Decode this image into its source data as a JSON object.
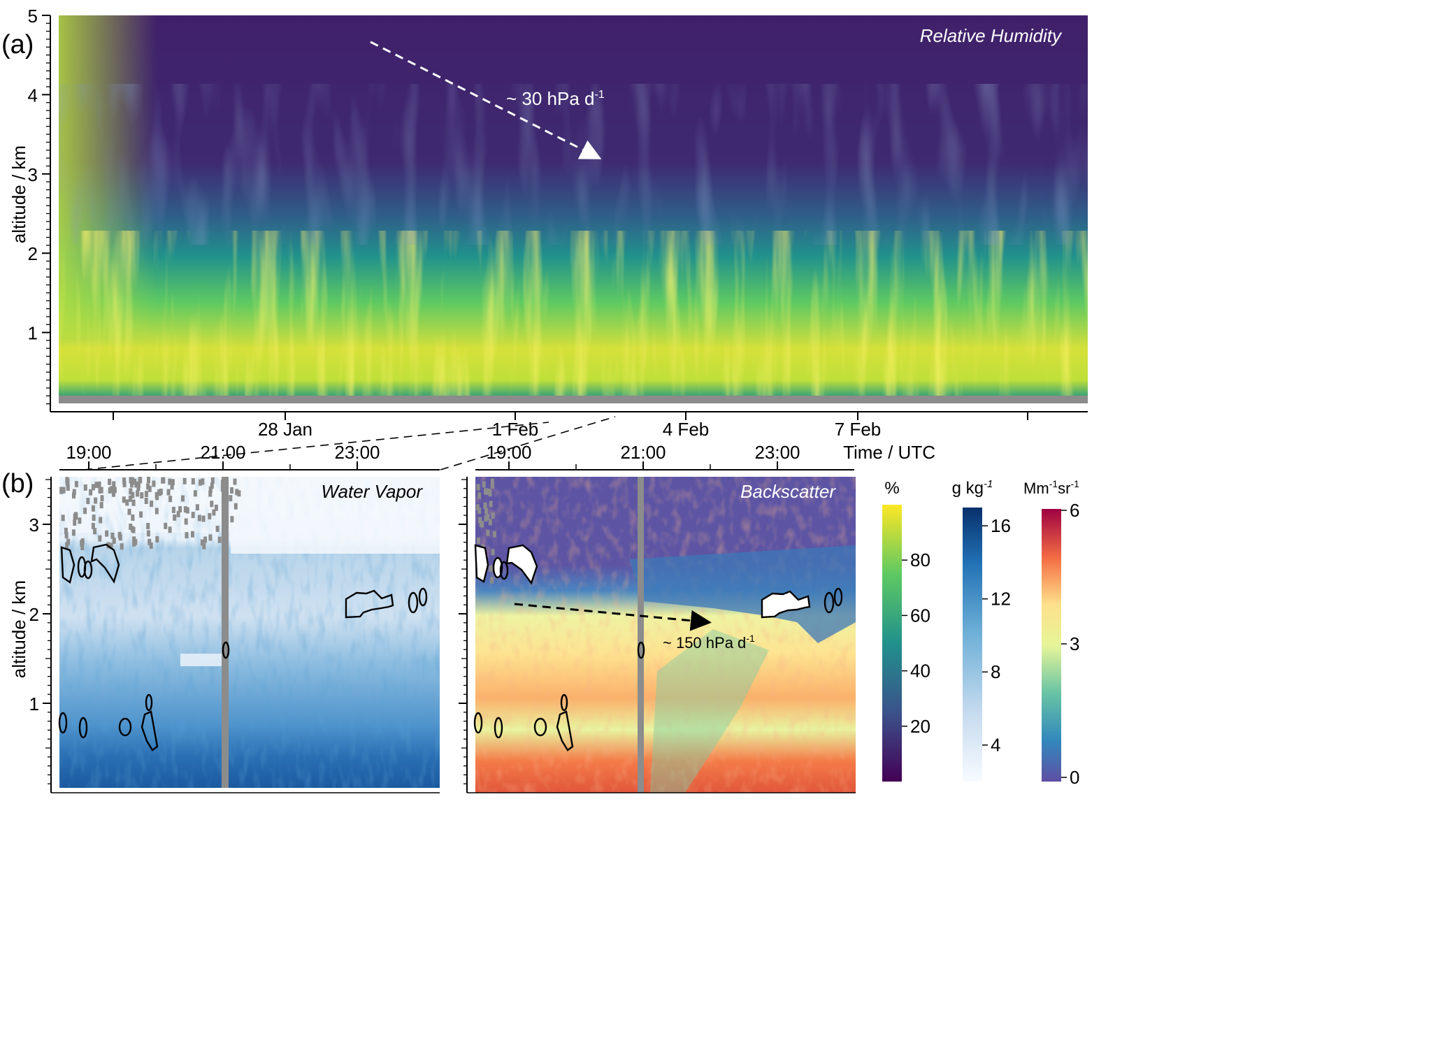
{
  "chart_data": [
    {
      "type": "heatmap",
      "panel_label": "(a)",
      "annotation_title": "Relative Humidity",
      "ylabel": "altitude / km",
      "xlabel": "Time / UTC",
      "ylim": [
        0,
        5
      ],
      "y_ticks": [
        "1",
        "2",
        "3",
        "4",
        "5"
      ],
      "x_ticks": [
        "28 Jan",
        "1 Feb",
        "4 Feb",
        "7 Feb"
      ],
      "rate_annotation": {
        "prefix": "~ 30 hPa d",
        "sup": "-1"
      },
      "colorbar": {
        "unit": "%",
        "ticks": [
          "20",
          "40",
          "60",
          "80"
        ],
        "range": [
          0,
          100
        ]
      }
    },
    {
      "type": "heatmap",
      "panel_label": "(b)",
      "annotation_title": "Water Vapor",
      "ylabel": "altitude / km",
      "ylim": [
        0,
        3.5
      ],
      "y_ticks": [
        "1",
        "2",
        "3"
      ],
      "x_ticks": [
        "19:00",
        "21:00",
        "23:00"
      ],
      "colorbar": {
        "unit": "g kg",
        "unit_sup": "-1",
        "ticks": [
          "4",
          "8",
          "12",
          "16"
        ],
        "range": [
          2,
          17
        ]
      }
    },
    {
      "type": "heatmap",
      "annotation_title": "Backscatter",
      "ylim": [
        0,
        3.5
      ],
      "x_ticks": [
        "19:00",
        "21:00",
        "23:00"
      ],
      "rate_annotation": {
        "prefix": "~ 150 hPa d",
        "sup": "-1"
      },
      "colorbar": {
        "unit": "Mm-1sr-1",
        "ticks": [
          "0",
          "3",
          "6"
        ],
        "range": [
          0,
          6
        ]
      }
    }
  ],
  "colors": {
    "viridis": [
      "#440154",
      "#3b528b",
      "#21918c",
      "#5ec962",
      "#fde725"
    ],
    "blues": [
      "#f7fbff",
      "#c6dbef",
      "#6baed6",
      "#2171b5",
      "#08306b"
    ],
    "spectral": [
      "#5e4fa2",
      "#3288bd",
      "#66c2a5",
      "#e6f598",
      "#fee08b",
      "#f46d43",
      "#9e0142"
    ],
    "missing": "#8c8c8c"
  }
}
